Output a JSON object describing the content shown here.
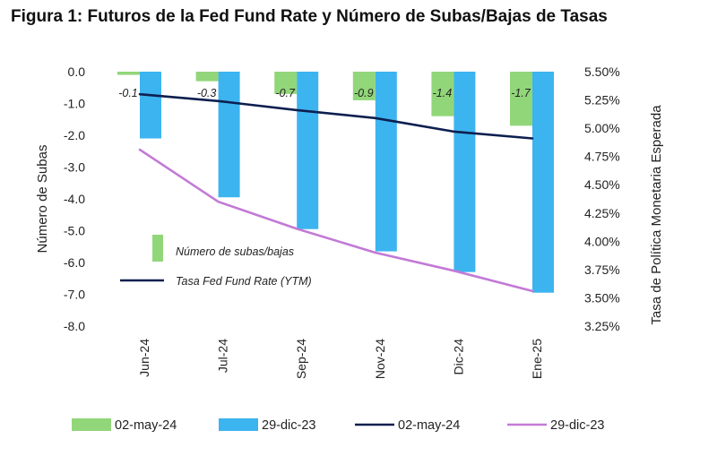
{
  "chart_data": {
    "type": "bar",
    "title": "Figura 1: Futuros de la Fed Fund Rate y Número de Subas/Bajas de Tasas",
    "categories": [
      "Jun-24",
      "Jul-24",
      "Sep-24",
      "Nov-24",
      "Dic-24",
      "Ene-25"
    ],
    "ylabel": "Número de Subas",
    "ylabel_right": "Tasa de Política Monetaria Esperada",
    "ylim": [
      -8.0,
      0.0
    ],
    "ylim_right": [
      3.25,
      5.5
    ],
    "yticks": [
      "0.0",
      "-1.0",
      "-2.0",
      "-3.0",
      "-4.0",
      "-5.0",
      "-6.0",
      "-7.0",
      "-8.0"
    ],
    "yticks_right": [
      "5.50%",
      "5.25%",
      "5.00%",
      "4.75%",
      "4.50%",
      "4.25%",
      "4.00%",
      "3.75%",
      "3.50%",
      "3.25%"
    ],
    "series": [
      {
        "name": "02-may-24",
        "kind": "bar",
        "axis": "left",
        "color": "#92d67a",
        "values": [
          -0.1,
          -0.3,
          -0.7,
          -0.9,
          -1.4,
          -1.7
        ],
        "data_labels": [
          "-0.1",
          "-0.3",
          "-0.7",
          "-0.9",
          "-1.4",
          "-1.7"
        ]
      },
      {
        "name": "29-dic-23",
        "kind": "bar",
        "axis": "left",
        "color": "#3cb4f0",
        "values": [
          -2.1,
          -3.95,
          -4.95,
          -5.65,
          -6.3,
          -6.95
        ]
      },
      {
        "name": "02-may-24",
        "kind": "line",
        "axis": "right",
        "color": "#0d1f4f",
        "values": [
          5.3,
          5.24,
          5.16,
          5.09,
          4.97,
          4.91
        ]
      },
      {
        "name": "29-dic-23",
        "kind": "line",
        "axis": "right",
        "color": "#c27ad6",
        "values": [
          4.81,
          4.35,
          4.11,
          3.9,
          3.74,
          3.56
        ]
      }
    ],
    "inner_legend": [
      {
        "label": "Número de subas/bajas",
        "swatch": "bar",
        "color": "#92d67a"
      },
      {
        "label": "Tasa Fed Fund Rate (YTM)",
        "swatch": "line",
        "color": "#0d1f4f"
      }
    ],
    "legend": [
      {
        "label": "02-may-24",
        "swatch": "bar",
        "color": "#92d67a"
      },
      {
        "label": "29-dic-23",
        "swatch": "bar",
        "color": "#3cb4f0"
      },
      {
        "label": "02-may-24",
        "swatch": "line",
        "color": "#0d1f4f"
      },
      {
        "label": "29-dic-23",
        "swatch": "line",
        "color": "#c27ad6"
      }
    ],
    "legend_position": "bottom",
    "grid": false
  }
}
